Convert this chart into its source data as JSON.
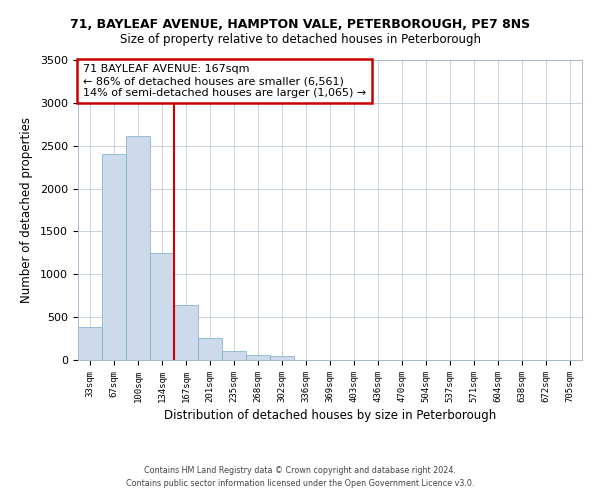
{
  "title": "71, BAYLEAF AVENUE, HAMPTON VALE, PETERBOROUGH, PE7 8NS",
  "subtitle": "Size of property relative to detached houses in Peterborough",
  "xlabel": "Distribution of detached houses by size in Peterborough",
  "ylabel": "Number of detached properties",
  "bar_color": "#ccdaeb",
  "bar_edgecolor": "#7aaac8",
  "annotation_title": "71 BAYLEAF AVENUE: 167sqm",
  "annotation_line1": "← 86% of detached houses are smaller (6,561)",
  "annotation_line2": "14% of semi-detached houses are larger (1,065) →",
  "annotation_box_edgecolor": "#cc0000",
  "vline_color": "#cc0000",
  "categories": [
    "33sqm",
    "67sqm",
    "100sqm",
    "134sqm",
    "167sqm",
    "201sqm",
    "235sqm",
    "268sqm",
    "302sqm",
    "336sqm",
    "369sqm",
    "403sqm",
    "436sqm",
    "470sqm",
    "504sqm",
    "537sqm",
    "571sqm",
    "604sqm",
    "638sqm",
    "672sqm",
    "705sqm"
  ],
  "values": [
    390,
    2400,
    2610,
    1250,
    640,
    260,
    100,
    55,
    45,
    0,
    0,
    0,
    0,
    0,
    0,
    0,
    0,
    0,
    0,
    0,
    0
  ],
  "ylim": [
    0,
    3500
  ],
  "yticks": [
    0,
    500,
    1000,
    1500,
    2000,
    2500,
    3000,
    3500
  ],
  "bg_color": "#ffffff",
  "grid_color": "#c0ccd8",
  "footer_line1": "Contains HM Land Registry data © Crown copyright and database right 2024.",
  "footer_line2": "Contains public sector information licensed under the Open Government Licence v3.0."
}
